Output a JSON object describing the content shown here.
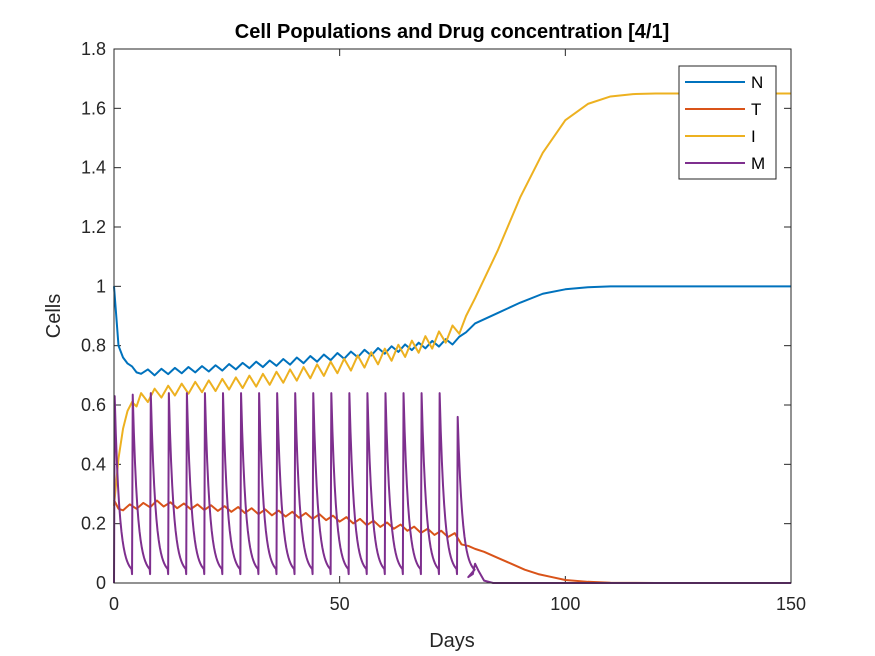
{
  "chart_data": {
    "type": "line",
    "title": "Cell Populations and Drug concentration [4/1]",
    "xlabel": "Days",
    "ylabel": "Cells",
    "xlim": [
      0,
      150
    ],
    "ylim": [
      0,
      1.8
    ],
    "xticks": [
      "0",
      "50",
      "100",
      "150"
    ],
    "yticks": [
      "0",
      "0.2",
      "0.4",
      "0.6",
      "0.8",
      "1",
      "1.2",
      "1.4",
      "1.6",
      "1.8"
    ],
    "legend_position": "top-right",
    "series": [
      {
        "name": "N",
        "color": "#0072BD",
        "x": [
          0,
          1,
          2,
          3,
          4,
          5,
          6,
          7.5,
          9,
          10.5,
          12,
          13.5,
          15,
          16.5,
          18,
          19.5,
          21,
          22.5,
          24,
          25.5,
          27,
          28.5,
          30,
          31.5,
          33,
          34.5,
          36,
          37.5,
          39,
          40.5,
          42,
          43.5,
          45,
          46.5,
          48,
          49.5,
          51,
          52.5,
          54,
          55.5,
          57,
          58.5,
          60,
          61.5,
          63,
          64.5,
          66,
          67.5,
          69,
          70.5,
          72,
          73.5,
          75,
          76.5,
          78,
          80,
          85,
          90,
          95,
          100,
          105,
          110,
          120,
          130,
          150
        ],
        "y": [
          1.0,
          0.8,
          0.76,
          0.74,
          0.73,
          0.71,
          0.705,
          0.72,
          0.7,
          0.722,
          0.704,
          0.725,
          0.707,
          0.728,
          0.71,
          0.731,
          0.713,
          0.734,
          0.716,
          0.738,
          0.72,
          0.742,
          0.724,
          0.746,
          0.728,
          0.75,
          0.732,
          0.755,
          0.736,
          0.76,
          0.741,
          0.765,
          0.746,
          0.77,
          0.751,
          0.775,
          0.756,
          0.78,
          0.761,
          0.786,
          0.767,
          0.792,
          0.773,
          0.798,
          0.779,
          0.804,
          0.785,
          0.81,
          0.791,
          0.816,
          0.797,
          0.822,
          0.804,
          0.83,
          0.845,
          0.875,
          0.91,
          0.945,
          0.975,
          0.99,
          0.997,
          1.0,
          1.0,
          1.0,
          1.0
        ]
      },
      {
        "name": "T",
        "color": "#D95319",
        "x": [
          0,
          1,
          2,
          3.5,
          5,
          6.5,
          8,
          9.5,
          11,
          12.5,
          14,
          15.5,
          17,
          18.5,
          20,
          21.5,
          23,
          24.5,
          26,
          27.5,
          29,
          30.5,
          32,
          33.5,
          35,
          36.5,
          38,
          39.5,
          41,
          42.5,
          44,
          45.5,
          47,
          48.5,
          50,
          51.5,
          53,
          54.5,
          56,
          57.5,
          59,
          60.5,
          62,
          63.5,
          65,
          66.5,
          68,
          69.5,
          71,
          72.5,
          74,
          75.5,
          77,
          78.5,
          80,
          82,
          85,
          88,
          91,
          94,
          97,
          100,
          105,
          110,
          120,
          150
        ],
        "y": [
          0.28,
          0.25,
          0.245,
          0.265,
          0.25,
          0.27,
          0.255,
          0.278,
          0.258,
          0.272,
          0.252,
          0.268,
          0.249,
          0.265,
          0.246,
          0.262,
          0.243,
          0.259,
          0.24,
          0.256,
          0.236,
          0.252,
          0.232,
          0.248,
          0.228,
          0.244,
          0.224,
          0.24,
          0.22,
          0.236,
          0.216,
          0.232,
          0.212,
          0.227,
          0.207,
          0.222,
          0.201,
          0.216,
          0.195,
          0.21,
          0.189,
          0.204,
          0.183,
          0.197,
          0.176,
          0.19,
          0.169,
          0.183,
          0.162,
          0.176,
          0.155,
          0.168,
          0.13,
          0.125,
          0.115,
          0.105,
          0.085,
          0.065,
          0.045,
          0.03,
          0.02,
          0.01,
          0.004,
          0.001,
          0.0,
          0.0
        ]
      },
      {
        "name": "I",
        "color": "#EDB120",
        "x": [
          0,
          1,
          2,
          3,
          4,
          5,
          6,
          7.5,
          9,
          10.5,
          12,
          13.5,
          15,
          16.5,
          18,
          19.5,
          21,
          22.5,
          24,
          25.5,
          27,
          28.5,
          30,
          31.5,
          33,
          34.5,
          36,
          37.5,
          39,
          40.5,
          42,
          43.5,
          45,
          46.5,
          48,
          49.5,
          51,
          52.5,
          54,
          55.5,
          57,
          58.5,
          60,
          61.5,
          63,
          64.5,
          66,
          67.5,
          69,
          70.5,
          72,
          73.5,
          75,
          76.5,
          78,
          80,
          85,
          90,
          95,
          100,
          105,
          110,
          115,
          120,
          130,
          150
        ],
        "y": [
          0.26,
          0.42,
          0.52,
          0.58,
          0.61,
          0.595,
          0.64,
          0.61,
          0.655,
          0.625,
          0.665,
          0.632,
          0.672,
          0.638,
          0.678,
          0.643,
          0.683,
          0.647,
          0.688,
          0.652,
          0.693,
          0.657,
          0.699,
          0.662,
          0.705,
          0.668,
          0.712,
          0.675,
          0.72,
          0.682,
          0.728,
          0.69,
          0.737,
          0.698,
          0.746,
          0.707,
          0.756,
          0.716,
          0.767,
          0.726,
          0.778,
          0.737,
          0.79,
          0.749,
          0.803,
          0.762,
          0.817,
          0.776,
          0.832,
          0.79,
          0.848,
          0.81,
          0.868,
          0.84,
          0.9,
          0.96,
          1.12,
          1.3,
          1.45,
          1.56,
          1.615,
          1.64,
          1.648,
          1.65,
          1.65,
          1.65
        ]
      },
      {
        "name": "M",
        "color": "#7E2F8E",
        "peak_days": [
          0,
          4,
          8,
          12,
          16,
          20,
          24,
          28,
          32,
          36,
          40,
          44,
          48,
          52,
          56,
          60,
          64,
          68,
          72,
          76
        ],
        "peaks": [
          0.63,
          0.635,
          0.64,
          0.64,
          0.64,
          0.64,
          0.64,
          0.64,
          0.64,
          0.64,
          0.64,
          0.64,
          0.64,
          0.64,
          0.64,
          0.64,
          0.64,
          0.64,
          0.64,
          0.56
        ],
        "trough": 0.03,
        "last_bump": [
          80,
          0.065
        ]
      }
    ]
  }
}
